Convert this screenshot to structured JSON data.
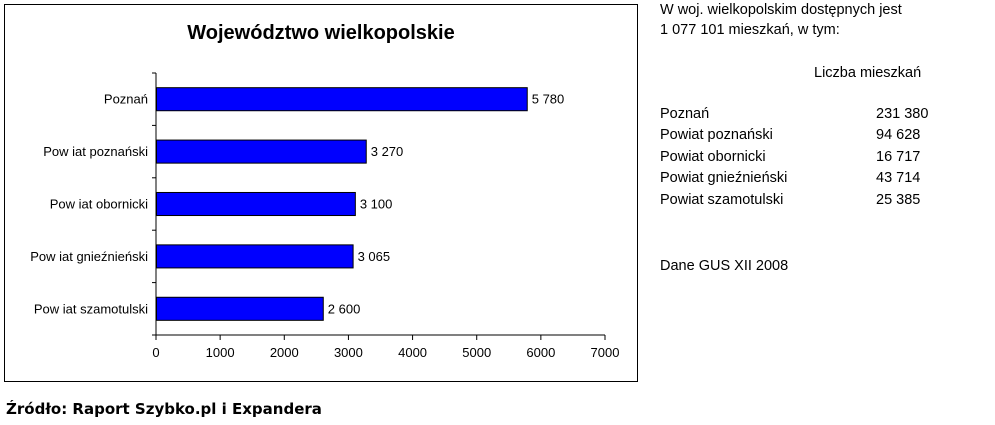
{
  "chart_data": {
    "type": "bar",
    "orientation": "horizontal",
    "title": "Województwo wielkopolskie",
    "categories": [
      "Poznań",
      "Pow iat poznański",
      "Pow iat obornicki",
      "Pow iat gnieźnieński",
      "Pow iat szamotulski"
    ],
    "values": [
      5780,
      3270,
      3100,
      3065,
      2600
    ],
    "value_labels": [
      "5 780",
      "3 270",
      "3 100",
      "3 065",
      "2 600"
    ],
    "xlim": [
      0,
      7000
    ],
    "xticks": [
      0,
      1000,
      2000,
      3000,
      4000,
      5000,
      6000,
      7000
    ],
    "bar_color": "#0000ff",
    "grid": false,
    "legend": "none"
  },
  "source": "Źródło: Raport Szybko.pl i Expandera",
  "side_panel": {
    "intro_line1": "W woj. wielkopolskim dostępnych jest",
    "intro_line2": "1 077 101 mieszkań, w tym:",
    "column_header": "Liczba mieszkań",
    "rows": [
      {
        "name": "Poznań",
        "value": "231 380"
      },
      {
        "name": "Powiat poznański",
        "value": "94 628"
      },
      {
        "name": "Powiat obornicki",
        "value": "16 717"
      },
      {
        "name": "Powiat gnieźnieński",
        "value": "43 714"
      },
      {
        "name": "Powiat szamotulski",
        "value": "25 385"
      }
    ],
    "footnote": "Dane GUS XII 2008"
  }
}
